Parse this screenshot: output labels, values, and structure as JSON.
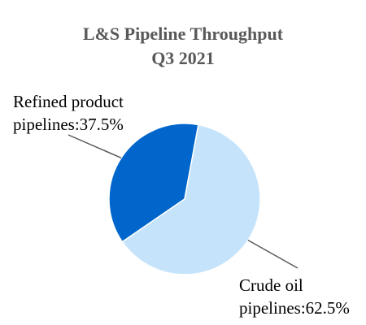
{
  "chart_data": {
    "type": "pie",
    "title": [
      "L&S Pipeline Throughput",
      "Q3 2021"
    ],
    "slices": [
      {
        "category": "Refined product pipelines",
        "value": 37.5,
        "label_lines": [
          "Refined product",
          "pipelines:37.5%"
        ],
        "color": "#0066CC"
      },
      {
        "category": "Crude oil pipelines",
        "value": 62.5,
        "label_lines": [
          "Crude oil",
          "pipelines:62.5%"
        ],
        "color": "#C5E4FB"
      }
    ],
    "legend": "none",
    "start_angle_deg": 10.5,
    "direction": "clockwise"
  },
  "colors": {
    "title": "#595959",
    "leader": "#595959",
    "label": "#000000",
    "background": "#FFFFFF"
  }
}
